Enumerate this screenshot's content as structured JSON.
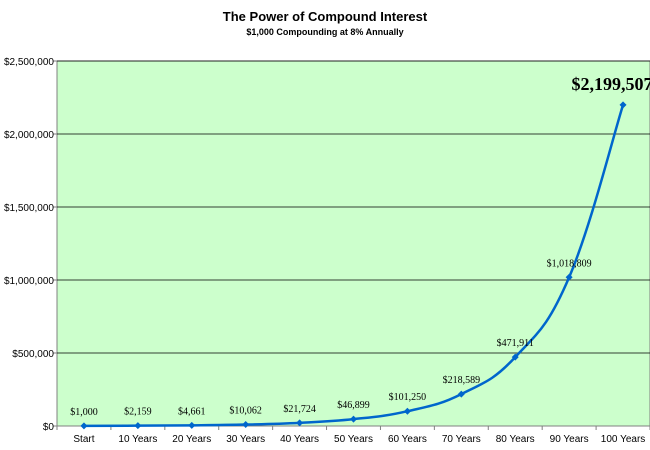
{
  "chart_data": {
    "type": "line",
    "title": "The Power of Compound Interest",
    "subtitle": "$1,000 Compounding at 8% Annually",
    "xlabel": "",
    "ylabel": "",
    "ylim": [
      0,
      2500000
    ],
    "yticks": [
      0,
      500000,
      1000000,
      1500000,
      2000000,
      2500000
    ],
    "ytick_labels": [
      "$0",
      "$500,000",
      "$1,000,000",
      "$1,500,000",
      "$2,000,000",
      "$2,500,000"
    ],
    "categories": [
      "Start",
      "10 Years",
      "20 Years",
      "30 Years",
      "40 Years",
      "50 Years",
      "60 Years",
      "70 Years",
      "80 Years",
      "90 Years",
      "100 Years"
    ],
    "series": [
      {
        "values": [
          1000,
          2159,
          4661,
          10062,
          21724,
          46899,
          101250,
          218589,
          471911,
          1018809,
          2199507
        ],
        "data_labels": [
          "$1,000",
          "$2,159",
          "$4,661",
          "$10,062",
          "$21,724",
          "$46,899",
          "$101,250",
          "$218,589",
          "$471,911",
          "$1,018,809",
          "$2,199,507"
        ]
      }
    ],
    "grid": true,
    "legend": "none",
    "colors": {
      "plot_background": "#ccffcc",
      "line": "#0066cc",
      "gridline": "#000000",
      "axis": "#808080"
    }
  }
}
